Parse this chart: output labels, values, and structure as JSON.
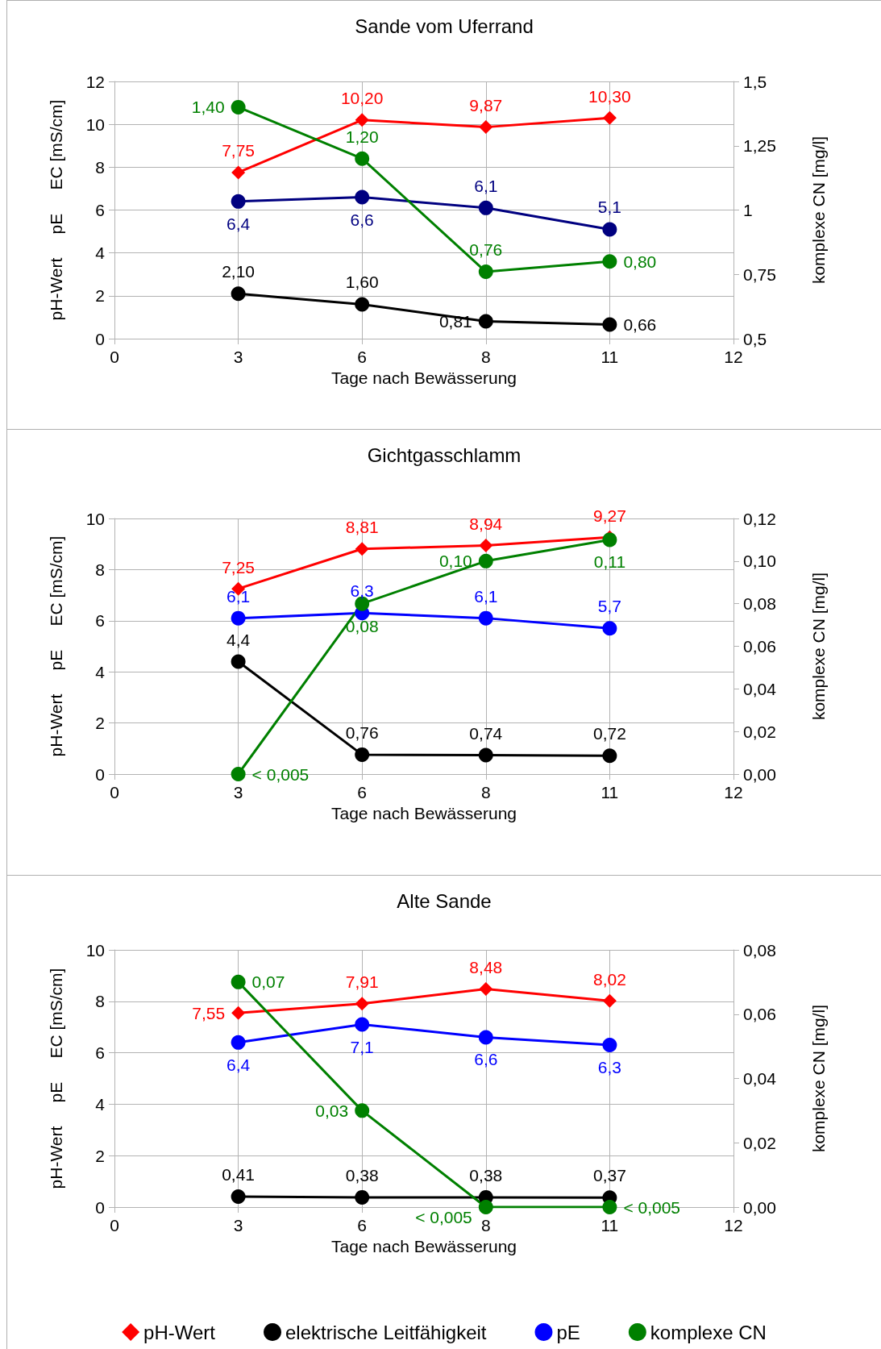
{
  "chart_data": [
    {
      "type": "line",
      "title": "Sande vom Uferrand",
      "xlabel": "Tage nach Bewässerung",
      "ylabel": "pH-Wert     pE     EC [mS/cm]",
      "y2label": "komplexe CN [mg/l]",
      "categories": [
        "0",
        "3",
        "6",
        "8",
        "11",
        "12"
      ],
      "ylim": [
        0,
        12
      ],
      "yticks": [
        0,
        2,
        4,
        6,
        8,
        10,
        12
      ],
      "y2lim": [
        0.5,
        1.5
      ],
      "y2ticks": [
        {
          "value": 0.5,
          "label": "0,5"
        },
        {
          "value": 0.75,
          "label": "0,75"
        },
        {
          "value": 1,
          "label": "1"
        },
        {
          "value": 1.25,
          "label": "1,25"
        },
        {
          "value": 1.5,
          "label": "1,5"
        }
      ],
      "grid": true,
      "legend": false,
      "series": [
        {
          "color": "#ff0000",
          "marker": "diamond",
          "values": [
            null,
            7.75,
            10.2,
            9.87,
            10.3,
            null
          ],
          "value_labels": [
            null,
            "7,75",
            "10,20",
            "9,87",
            "10,30",
            null
          ]
        },
        {
          "color": "#000000",
          "marker": "circle",
          "values": [
            null,
            2.1,
            1.6,
            0.81,
            0.66,
            null
          ],
          "value_labels": [
            null,
            "2,10",
            "1,60",
            "0,81",
            "0,66",
            null
          ]
        },
        {
          "color": "#000080",
          "marker": "circle",
          "values": [
            null,
            6.4,
            6.6,
            6.1,
            5.1,
            null
          ],
          "value_labels": [
            null,
            "6,4",
            "6,6",
            "6,1",
            "5,1",
            null
          ]
        },
        {
          "color": "#008000",
          "marker": "circle",
          "axis": "y2",
          "values": [
            null,
            1.4,
            1.2,
            0.76,
            0.8,
            null
          ],
          "value_labels": [
            null,
            "1,40",
            "1,20",
            "0,76",
            "0,80",
            null
          ]
        }
      ]
    },
    {
      "type": "line",
      "title": "Gichtgasschlamm",
      "xlabel": "Tage nach Bewässerung",
      "ylabel": "pH-Wert     pE     EC [mS/cm]",
      "y2label": "komplexe CN [mg/l]",
      "categories": [
        "0",
        "3",
        "6",
        "8",
        "11",
        "12"
      ],
      "ylim": [
        0,
        10
      ],
      "yticks": [
        0,
        2,
        4,
        6,
        8,
        10
      ],
      "y2lim": [
        0,
        0.12
      ],
      "y2ticks": [
        {
          "value": 0,
          "label": "0,00"
        },
        {
          "value": 0.02,
          "label": "0,02"
        },
        {
          "value": 0.04,
          "label": "0,04"
        },
        {
          "value": 0.06,
          "label": "0,06"
        },
        {
          "value": 0.08,
          "label": "0,08"
        },
        {
          "value": 0.1,
          "label": "0,10"
        },
        {
          "value": 0.12,
          "label": "0,12"
        }
      ],
      "grid": true,
      "legend": false,
      "series": [
        {
          "color": "#ff0000",
          "marker": "diamond",
          "values": [
            null,
            7.25,
            8.81,
            8.94,
            9.27,
            null
          ],
          "value_labels": [
            null,
            "7,25",
            "8,81",
            "8,94",
            "9,27",
            null
          ]
        },
        {
          "color": "#000000",
          "marker": "circle",
          "values": [
            null,
            4.4,
            0.76,
            0.74,
            0.72,
            null
          ],
          "value_labels": [
            null,
            "4,4",
            "0,76",
            "0,74",
            "0,72",
            null
          ]
        },
        {
          "color": "#0000ff",
          "marker": "circle",
          "values": [
            null,
            6.1,
            6.3,
            6.1,
            5.7,
            null
          ],
          "value_labels": [
            null,
            "6,1",
            "6,3",
            "6,1",
            "5,7",
            null
          ]
        },
        {
          "color": "#008000",
          "marker": "circle",
          "axis": "y2",
          "values": [
            null,
            0,
            0.08,
            0.1,
            0.11,
            null
          ],
          "value_labels": [
            null,
            "< 0,005",
            "0,08",
            "0,10",
            "0,11",
            null
          ]
        }
      ]
    },
    {
      "type": "line",
      "title": "Alte Sande",
      "xlabel": "Tage nach Bewässerung",
      "ylabel": "pH-Wert     pE     EC [mS/cm]",
      "y2label": "komplexe CN [mg/l]",
      "categories": [
        "0",
        "3",
        "6",
        "8",
        "11",
        "12"
      ],
      "ylim": [
        0,
        10
      ],
      "yticks": [
        0,
        2,
        4,
        6,
        8,
        10
      ],
      "y2lim": [
        0,
        0.08
      ],
      "y2ticks": [
        {
          "value": 0,
          "label": "0,00"
        },
        {
          "value": 0.02,
          "label": "0,02"
        },
        {
          "value": 0.04,
          "label": "0,04"
        },
        {
          "value": 0.06,
          "label": "0,06"
        },
        {
          "value": 0.08,
          "label": "0,08"
        }
      ],
      "grid": true,
      "legend": "bottom",
      "series": [
        {
          "name": "pH-Wert",
          "color": "#ff0000",
          "marker": "diamond",
          "values": [
            null,
            7.55,
            7.91,
            8.48,
            8.02,
            null
          ],
          "value_labels": [
            null,
            "7,55",
            "7,91",
            "8,48",
            "8,02",
            null
          ]
        },
        {
          "name": "elektrische Leitfähigkeit",
          "color": "#000000",
          "marker": "circle",
          "values": [
            null,
            0.41,
            0.38,
            0.38,
            0.37,
            null
          ],
          "value_labels": [
            null,
            "0,41",
            "0,38",
            "0,38",
            "0,37",
            null
          ]
        },
        {
          "name": "pE",
          "color": "#0000ff",
          "marker": "circle",
          "values": [
            null,
            6.4,
            7.1,
            6.6,
            6.3,
            null
          ],
          "value_labels": [
            null,
            "6,4",
            "7,1",
            "6,6",
            "6,3",
            null
          ]
        },
        {
          "name": "komplexe CN",
          "color": "#008000",
          "marker": "circle",
          "axis": "y2",
          "values": [
            null,
            0.07,
            0.03,
            0,
            0,
            null
          ],
          "value_labels": [
            null,
            "0,07",
            "0,03",
            "< 0,005",
            "< 0,005",
            null
          ]
        }
      ]
    }
  ]
}
